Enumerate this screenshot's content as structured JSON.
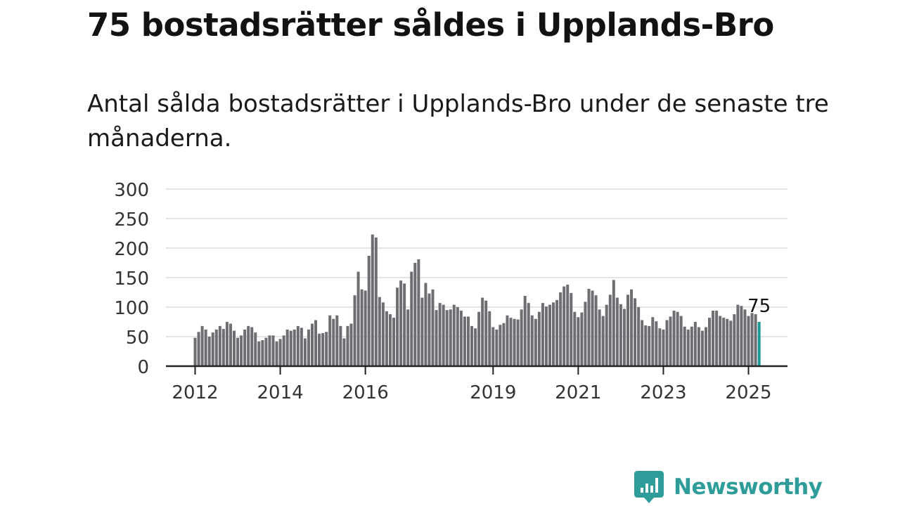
{
  "title": "75 bostadsrätter såldes i Upplands-Bro",
  "subtitle": "Antal sålda bostadsrätter i Upplands-Bro under de senaste tre månaderna.",
  "brand": {
    "name": "Newsworthy",
    "icon": "newsworthy-logo-icon",
    "color": "#2e9c98"
  },
  "chart_data": {
    "type": "bar",
    "title": "",
    "xlabel": "",
    "ylabel": "",
    "ylim": [
      0,
      300
    ],
    "yticks": [
      "0",
      "50",
      "100",
      "150",
      "200",
      "250",
      "300"
    ],
    "xticks": [
      "2012",
      "2014",
      "2016",
      "2019",
      "2021",
      "2023",
      "2025"
    ],
    "xtick_positions": [
      "2012-01",
      "2014-01",
      "2016-01",
      "2019-01",
      "2021-01",
      "2023-01",
      "2025-01"
    ],
    "grid": true,
    "bar_color": "#6e6d72",
    "highlight_color": "#1a9a96",
    "highlight_label": "75",
    "categories": [
      "2012-01",
      "2012-02",
      "2012-03",
      "2012-04",
      "2012-05",
      "2012-06",
      "2012-07",
      "2012-08",
      "2012-09",
      "2012-10",
      "2012-11",
      "2012-12",
      "2013-01",
      "2013-02",
      "2013-03",
      "2013-04",
      "2013-05",
      "2013-06",
      "2013-07",
      "2013-08",
      "2013-09",
      "2013-10",
      "2013-11",
      "2013-12",
      "2014-01",
      "2014-02",
      "2014-03",
      "2014-04",
      "2014-05",
      "2014-06",
      "2014-07",
      "2014-08",
      "2014-09",
      "2014-10",
      "2014-11",
      "2014-12",
      "2015-01",
      "2015-02",
      "2015-03",
      "2015-04",
      "2015-05",
      "2015-06",
      "2015-07",
      "2015-08",
      "2015-09",
      "2015-10",
      "2015-11",
      "2015-12",
      "2016-01",
      "2016-02",
      "2016-03",
      "2016-04",
      "2016-05",
      "2016-06",
      "2016-07",
      "2016-08",
      "2016-09",
      "2016-10",
      "2016-11",
      "2016-12",
      "2017-01",
      "2017-02",
      "2017-03",
      "2017-04",
      "2017-05",
      "2017-06",
      "2017-07",
      "2017-08",
      "2017-09",
      "2017-10",
      "2017-11",
      "2017-12",
      "2018-01",
      "2018-02",
      "2018-03",
      "2018-04",
      "2018-05",
      "2018-06",
      "2018-07",
      "2018-08",
      "2018-09",
      "2018-10",
      "2018-11",
      "2018-12",
      "2019-01",
      "2019-02",
      "2019-03",
      "2019-04",
      "2019-05",
      "2019-06",
      "2019-07",
      "2019-08",
      "2019-09",
      "2019-10",
      "2019-11",
      "2019-12",
      "2020-01",
      "2020-02",
      "2020-03",
      "2020-04",
      "2020-05",
      "2020-06",
      "2020-07",
      "2020-08",
      "2020-09",
      "2020-10",
      "2020-11",
      "2020-12",
      "2021-01",
      "2021-02",
      "2021-03",
      "2021-04",
      "2021-05",
      "2021-06",
      "2021-07",
      "2021-08",
      "2021-09",
      "2021-10",
      "2021-11",
      "2021-12",
      "2022-01",
      "2022-02",
      "2022-03",
      "2022-04",
      "2022-05",
      "2022-06",
      "2022-07",
      "2022-08",
      "2022-09",
      "2022-10",
      "2022-11",
      "2022-12",
      "2023-01",
      "2023-02",
      "2023-03",
      "2023-04",
      "2023-05",
      "2023-06",
      "2023-07",
      "2023-08",
      "2023-09",
      "2023-10",
      "2023-11",
      "2023-12",
      "2024-01",
      "2024-02",
      "2024-03",
      "2024-04",
      "2024-05",
      "2024-06",
      "2024-07",
      "2024-08",
      "2024-09",
      "2024-10",
      "2024-11",
      "2024-12",
      "2025-01",
      "2025-02",
      "2025-03",
      "2025-04"
    ],
    "values": [
      48,
      58,
      68,
      62,
      50,
      57,
      62,
      68,
      63,
      75,
      72,
      60,
      48,
      52,
      62,
      68,
      66,
      57,
      42,
      44,
      48,
      52,
      52,
      42,
      46,
      52,
      62,
      60,
      62,
      68,
      65,
      47,
      62,
      72,
      78,
      55,
      56,
      58,
      86,
      80,
      86,
      68,
      47,
      68,
      72,
      120,
      160,
      130,
      128,
      187,
      223,
      218,
      117,
      108,
      93,
      88,
      82,
      133,
      145,
      140,
      96,
      160,
      175,
      181,
      116,
      141,
      123,
      130,
      95,
      107,
      104,
      95,
      96,
      104,
      100,
      94,
      84,
      84,
      68,
      64,
      92,
      116,
      111,
      93,
      66,
      62,
      70,
      73,
      86,
      82,
      80,
      79,
      96,
      119,
      107,
      86,
      80,
      92,
      107,
      101,
      104,
      108,
      112,
      125,
      135,
      138,
      124,
      92,
      83,
      91,
      109,
      131,
      128,
      120,
      96,
      85,
      104,
      121,
      146,
      116,
      105,
      97,
      121,
      130,
      115,
      100,
      78,
      69,
      68,
      83,
      76,
      64,
      62,
      78,
      84,
      94,
      92,
      85,
      67,
      62,
      67,
      75,
      66,
      60,
      66,
      82,
      94,
      94,
      85,
      82,
      80,
      77,
      88,
      104,
      102,
      96,
      85,
      90,
      88,
      75
    ]
  }
}
